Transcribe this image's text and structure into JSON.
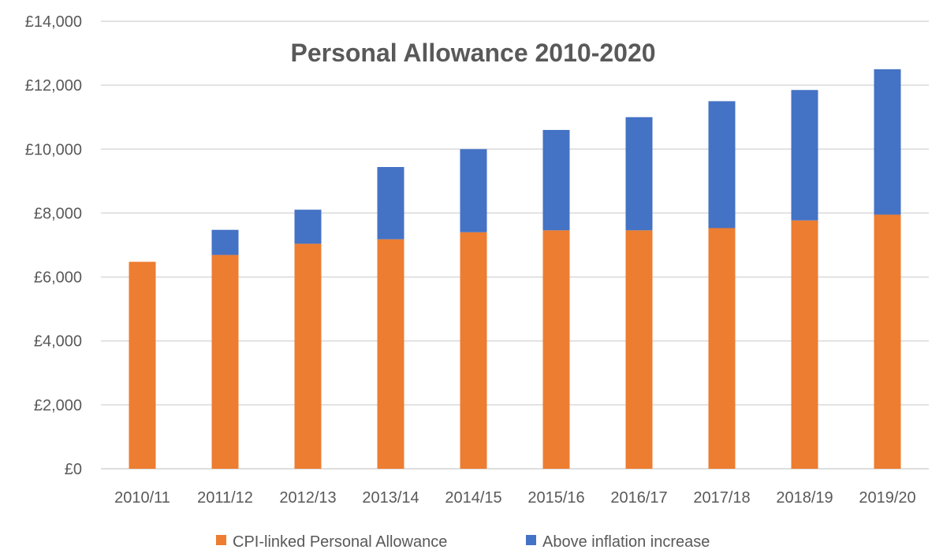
{
  "chart_data": {
    "type": "bar",
    "stacked": true,
    "title": "Personal Allowance 2010-2020",
    "xlabel": "",
    "ylabel": "",
    "categories": [
      "2010/11",
      "2011/12",
      "2012/13",
      "2013/14",
      "2014/15",
      "2015/16",
      "2016/17",
      "2017/18",
      "2018/19",
      "2019/20"
    ],
    "ylim": [
      0,
      14000
    ],
    "yticks": [
      0,
      2000,
      4000,
      6000,
      8000,
      10000,
      12000,
      14000
    ],
    "ytick_labels": [
      "£0",
      "£2,000",
      "£4,000",
      "£6,000",
      "£8,000",
      "£10,000",
      "£12,000",
      "£14,000"
    ],
    "grid": true,
    "legend_position": "bottom",
    "series": [
      {
        "name": "CPI-linked Personal Allowance",
        "color": "#ed7d31",
        "values": [
          6475,
          6690,
          7040,
          7180,
          7400,
          7460,
          7460,
          7530,
          7770,
          7950
        ]
      },
      {
        "name": "Above inflation increase",
        "color": "#4472c4",
        "values": [
          0,
          785,
          1065,
          2260,
          2600,
          3140,
          3540,
          3970,
          4080,
          4550
        ]
      }
    ]
  }
}
